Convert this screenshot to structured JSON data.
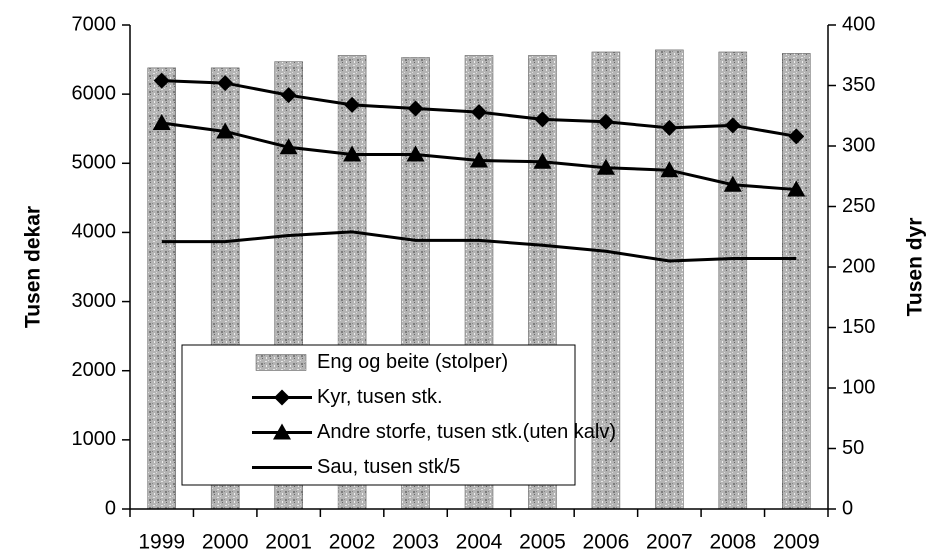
{
  "chart_data": {
    "type": "bar",
    "categories": [
      "1999",
      "2000",
      "2001",
      "2002",
      "2003",
      "2004",
      "2005",
      "2006",
      "2007",
      "2008",
      "2009"
    ],
    "ylabel": "Tusen dekar",
    "y2label": "Tusen dyr",
    "ylim": [
      0,
      7000
    ],
    "yticks": [
      0,
      1000,
      2000,
      3000,
      4000,
      5000,
      6000,
      7000
    ],
    "y2lim": [
      0,
      400
    ],
    "y2ticks": [
      0,
      50,
      100,
      150,
      200,
      250,
      300,
      350,
      400
    ],
    "legend": "lower center",
    "series": [
      {
        "name": "Eng og beite (stolper)",
        "type": "bar",
        "color": "#a8a8a8",
        "values": [
          6380,
          6380,
          6470,
          6560,
          6530,
          6560,
          6560,
          6610,
          6640,
          6610,
          6590
        ]
      },
      {
        "name": "Kyr, tusen stk.",
        "type": "line",
        "marker": "diamond",
        "axis": "y2",
        "color": "#000000",
        "values": [
          354,
          352,
          342,
          334,
          331,
          328,
          322,
          320,
          315,
          317,
          308
        ]
      },
      {
        "name": "Andre storfe, tusen stk.(uten kalv)",
        "type": "line",
        "marker": "triangle",
        "axis": "y2",
        "color": "#000000",
        "values": [
          319,
          312,
          299,
          293,
          293,
          288,
          287,
          282,
          280,
          268,
          264
        ]
      },
      {
        "name": "Sau, tusen stk/5",
        "type": "line",
        "marker": "none",
        "axis": "y2",
        "color": "#000000",
        "values": [
          221,
          221,
          226,
          229,
          222,
          222,
          218,
          213,
          205,
          207,
          207
        ]
      }
    ]
  }
}
